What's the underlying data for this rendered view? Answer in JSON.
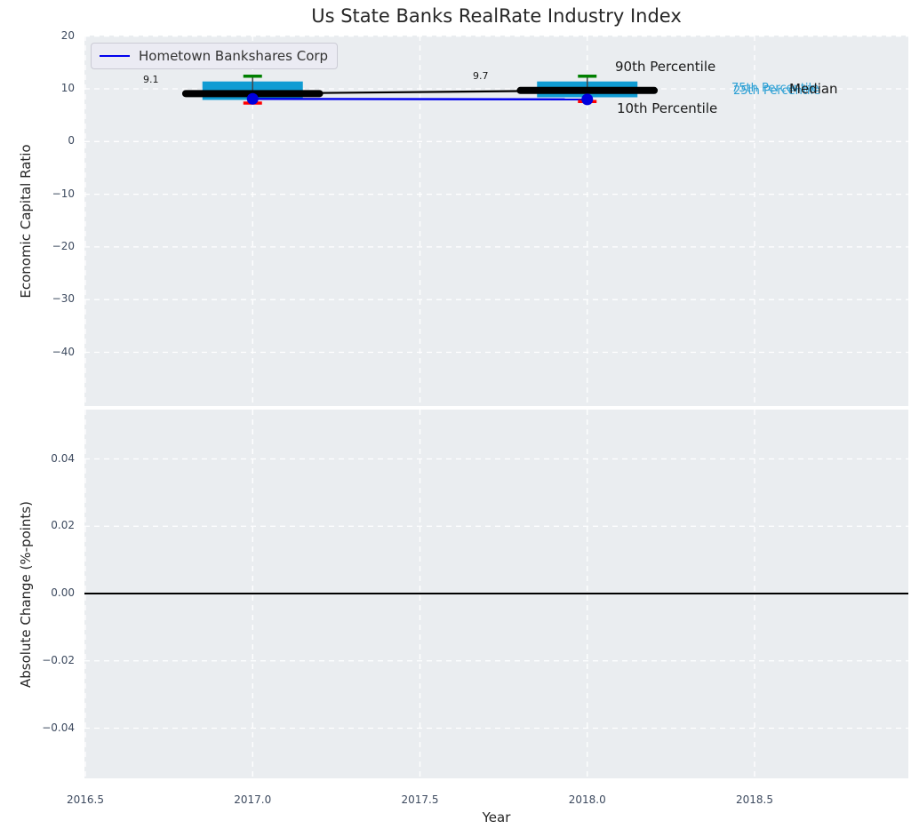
{
  "title": "Us State Banks RealRate Industry Index",
  "legend": {
    "label": "Hometown Bankshares Corp"
  },
  "axes": {
    "ylabel_top": "Economic Capital Ratio",
    "ylabel_bottom": "Absolute Change (%-points)",
    "xlabel": "Year"
  },
  "annotations": {
    "p90_label": "90th Percentile",
    "p10_label": "10th Percentile",
    "p75_label": "75th Percentile",
    "p25_label": "25th Percentile",
    "median_label": "Median",
    "value_2017": "9.1",
    "value_2018": "9.7"
  },
  "colors": {
    "box_fill": "#109CD3",
    "median_line": "#000000",
    "company_line": "#0000EE",
    "company_dot": "#0000DD",
    "p90_cap": "#008000",
    "p10_cap": "#FF0000",
    "whisker": "#454545",
    "plot_bg": "#EAEDF0",
    "grid": "#FFFFFF",
    "tick_text": "#3D4A5F",
    "cyan_text": "#2B9FD4",
    "zero_line": "#000000"
  },
  "chart_data": [
    {
      "type": "boxplot-line",
      "title": "Us State Banks RealRate Industry Index",
      "xlabel": "Year",
      "ylabel": "Economic Capital Ratio",
      "xlim": [
        2016.48,
        2018.96
      ],
      "ylim": [
        -50.3,
        20.3
      ],
      "grid": true,
      "legend_position": "upper left",
      "xticks": [
        {
          "v": 2016.5,
          "label": "2016.5"
        },
        {
          "v": 2017.0,
          "label": "2017.0"
        },
        {
          "v": 2017.5,
          "label": "2017.5"
        },
        {
          "v": 2018.0,
          "label": "2018.0"
        },
        {
          "v": 2018.5,
          "label": "2018.5"
        }
      ],
      "yticks": [
        {
          "v": 20,
          "label": "20"
        },
        {
          "v": 10,
          "label": "10"
        },
        {
          "v": 0,
          "label": "0"
        },
        {
          "v": -10,
          "label": "−10"
        },
        {
          "v": -20,
          "label": "−20"
        },
        {
          "v": -30,
          "label": "−30"
        },
        {
          "v": -40,
          "label": "−40"
        }
      ],
      "boxes": [
        {
          "x": 2017,
          "p90": 12.4,
          "p75": 11.4,
          "median": 9.1,
          "p25": 7.9,
          "p10": 7.3,
          "company": 8.1,
          "label": "9.1"
        },
        {
          "x": 2018,
          "p90": 12.4,
          "p75": 11.4,
          "median": 9.7,
          "p25": 8.4,
          "p10": 7.6,
          "company": 8.0,
          "label": "9.7"
        }
      ],
      "series": [
        {
          "name": "Industry Median",
          "x": [
            2017,
            2018
          ],
          "values": [
            9.1,
            9.7
          ]
        },
        {
          "name": "Hometown Bankshares Corp",
          "x": [
            2017,
            2018
          ],
          "values": [
            8.1,
            8.0
          ]
        }
      ]
    },
    {
      "type": "line",
      "xlabel": "Year",
      "ylabel": "Absolute Change (%-points)",
      "xlim": [
        2016.48,
        2018.96
      ],
      "ylim": [
        -0.055,
        0.055
      ],
      "grid": true,
      "yticks": [
        {
          "v": 0.04,
          "label": "0.04"
        },
        {
          "v": 0.02,
          "label": "0.02"
        },
        {
          "v": 0.0,
          "label": "0.00"
        },
        {
          "v": -0.02,
          "label": "−0.02"
        },
        {
          "v": -0.04,
          "label": "−0.04"
        }
      ],
      "zero_line": 0.0,
      "series": []
    }
  ]
}
